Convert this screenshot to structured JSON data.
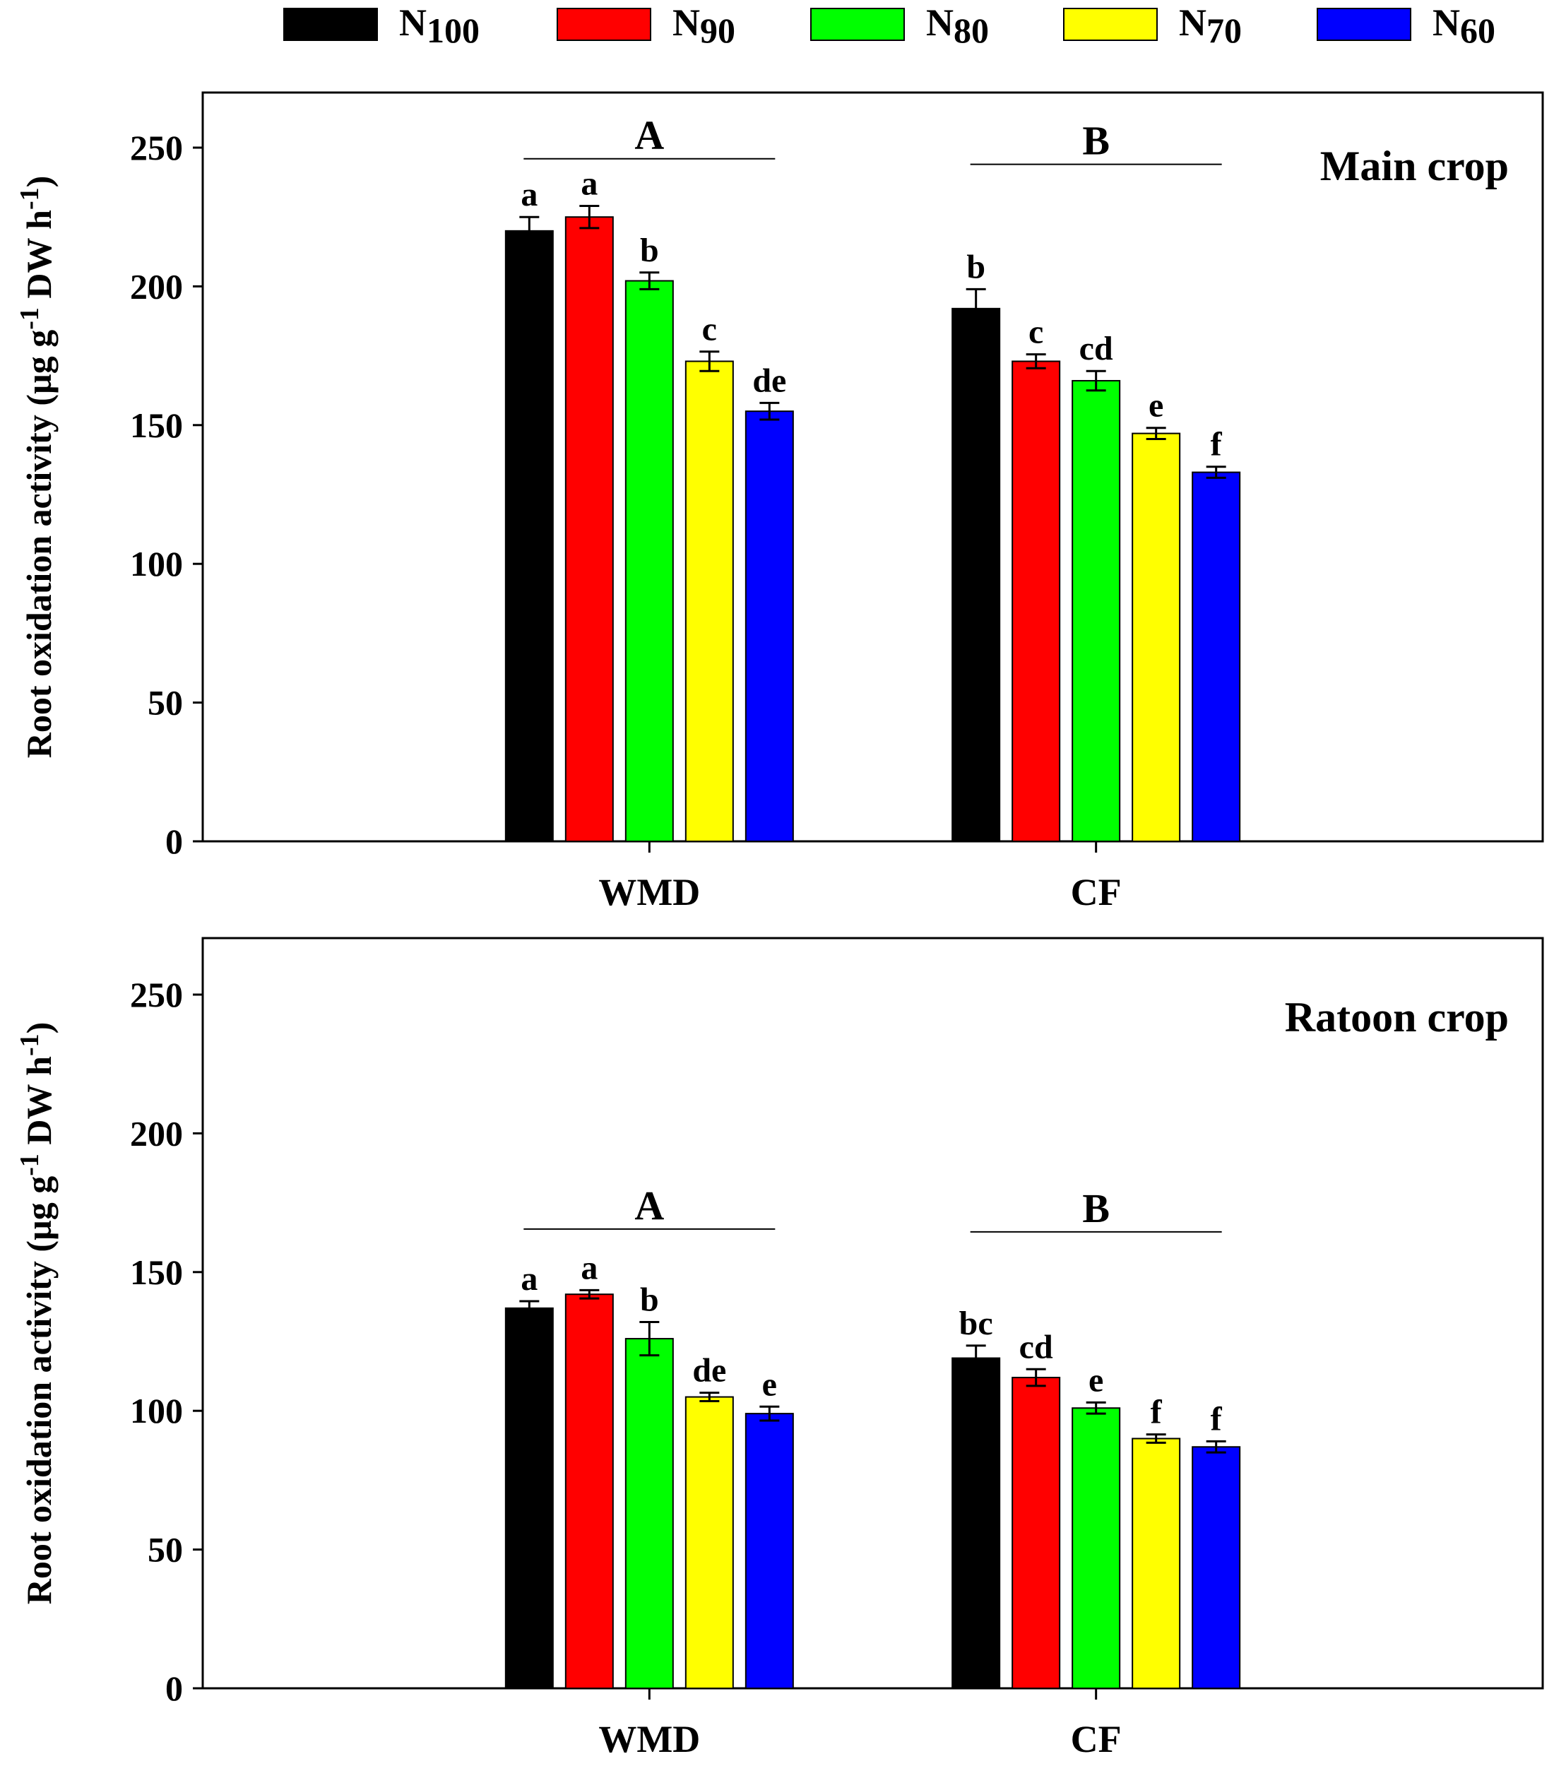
{
  "legend": [
    {
      "base": "N",
      "sub": "100",
      "color": "#000000"
    },
    {
      "base": "N",
      "sub": "90",
      "color": "#ff0000"
    },
    {
      "base": "N",
      "sub": "80",
      "color": "#00ff00"
    },
    {
      "base": "N",
      "sub": "70",
      "color": "#ffff00"
    },
    {
      "base": "N",
      "sub": "60",
      "color": "#0000ff"
    }
  ],
  "chart_data": [
    {
      "type": "bar",
      "title": "Main crop",
      "ylabel": "Root oxidation activity (µg g-1 DW h-1)",
      "ylabel_parts": [
        "Root oxidation activity (µg g",
        "-1",
        " DW h",
        "-1",
        ")"
      ],
      "ylim": [
        0,
        270
      ],
      "yticks": [
        0,
        50,
        100,
        150,
        200,
        250
      ],
      "categories": [
        "WMD",
        "CF"
      ],
      "series": [
        {
          "name": "N100",
          "values": [
            220,
            192
          ],
          "errors": [
            5,
            7
          ],
          "letters": [
            "a",
            "b"
          ]
        },
        {
          "name": "N90",
          "values": [
            225,
            173
          ],
          "errors": [
            4,
            2.5
          ],
          "letters": [
            "a",
            "c"
          ]
        },
        {
          "name": "N80",
          "values": [
            202,
            166
          ],
          "errors": [
            3,
            3.5
          ],
          "letters": [
            "b",
            "cd"
          ]
        },
        {
          "name": "N70",
          "values": [
            173,
            147
          ],
          "errors": [
            3.5,
            2
          ],
          "letters": [
            "c",
            "e"
          ]
        },
        {
          "name": "N60",
          "values": [
            155,
            133
          ],
          "errors": [
            3,
            2
          ],
          "letters": [
            "de",
            "f"
          ]
        }
      ],
      "group_letters": [
        {
          "label": "A",
          "y": 246
        },
        {
          "label": "B",
          "y": 244
        }
      ]
    },
    {
      "type": "bar",
      "title": "Ratoon crop",
      "ylabel": "Root oxidation activity (µg g-1 DW h-1)",
      "ylabel_parts": [
        "Root oxidation activity (µg g",
        "-1",
        " DW h",
        "-1",
        ")"
      ],
      "ylim": [
        0,
        270
      ],
      "yticks": [
        0,
        50,
        100,
        150,
        200,
        250
      ],
      "categories": [
        "WMD",
        "CF"
      ],
      "series": [
        {
          "name": "N100",
          "values": [
            137,
            119
          ],
          "errors": [
            2.5,
            4.5
          ],
          "letters": [
            "a",
            "bc"
          ]
        },
        {
          "name": "N90",
          "values": [
            142,
            112
          ],
          "errors": [
            1.5,
            3
          ],
          "letters": [
            "a",
            "cd"
          ]
        },
        {
          "name": "N80",
          "values": [
            126,
            101
          ],
          "errors": [
            6,
            2
          ],
          "letters": [
            "b",
            "e"
          ]
        },
        {
          "name": "N70",
          "values": [
            105,
            90
          ],
          "errors": [
            1.5,
            1.5
          ],
          "letters": [
            "de",
            "f"
          ]
        },
        {
          "name": "N60",
          "values": [
            99,
            87
          ],
          "errors": [
            2.5,
            2
          ],
          "letters": [
            "e",
            "f"
          ]
        }
      ],
      "group_letters": [
        {
          "label": "A",
          "y": 165.5
        },
        {
          "label": "B",
          "y": 164.5
        }
      ]
    }
  ]
}
